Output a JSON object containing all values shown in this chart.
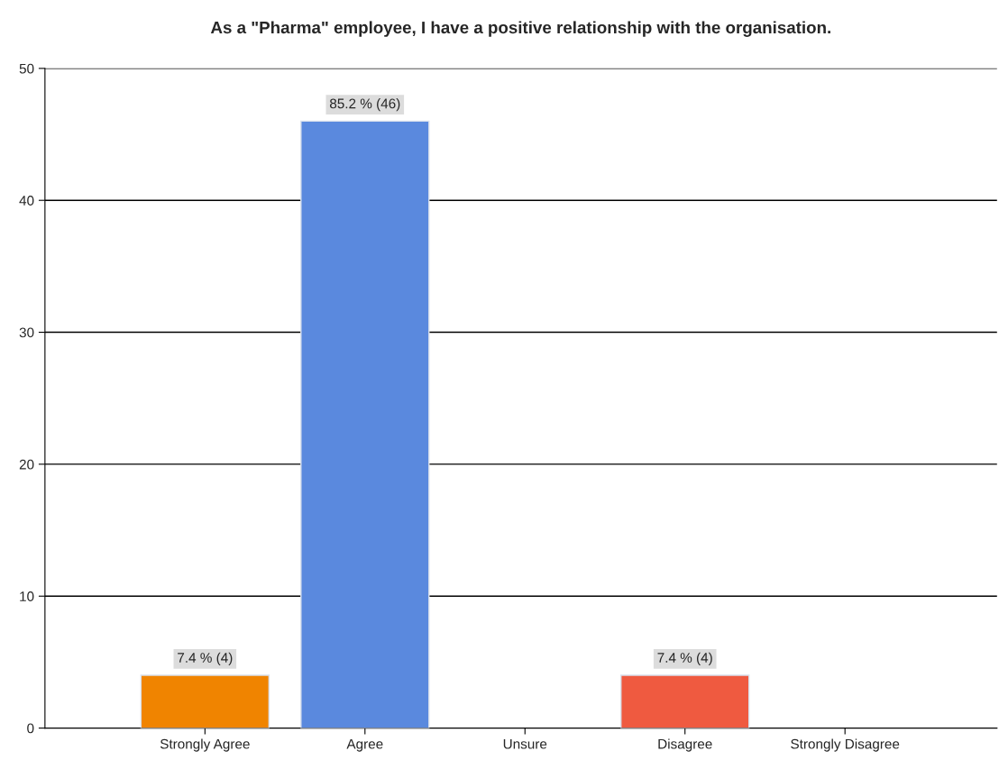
{
  "chart_data": {
    "type": "bar",
    "title": "As a \"Pharma\" employee, I have a positive relationship with the organisation.",
    "categories": [
      "Strongly Agree",
      "Agree",
      "Unsure",
      "Disagree",
      "Strongly Disagree"
    ],
    "values": [
      4,
      46,
      0,
      4,
      0
    ],
    "colors": [
      "#f08400",
      "#5a89de",
      null,
      "#ef5a40",
      null
    ],
    "value_labels": [
      "7.4 % (4)",
      "85.2 % (46)",
      null,
      "7.4 % (4)",
      null
    ],
    "ylim": [
      0,
      50
    ],
    "yticks": [
      0,
      10,
      20,
      30,
      40,
      50
    ],
    "grid": "y"
  }
}
